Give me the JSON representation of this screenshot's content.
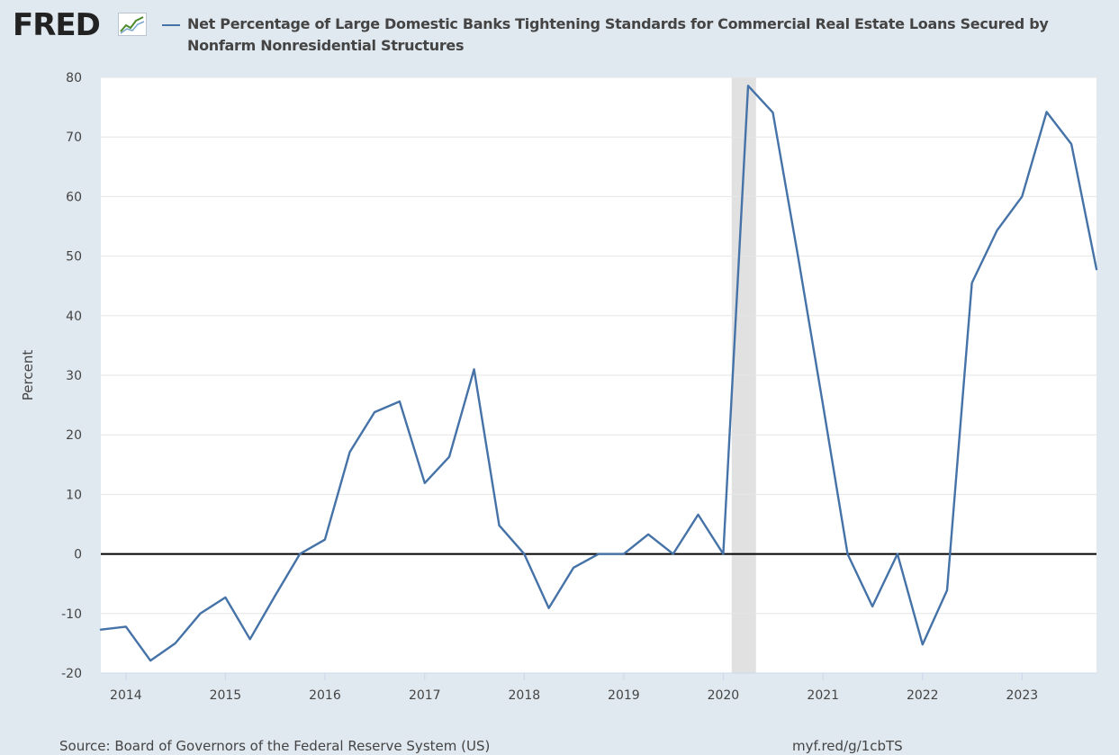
{
  "header": {
    "logo_text": "FRED",
    "title": "Net Percentage of Large Domestic Banks Tightening Standards for Commercial Real Estate Loans Secured by Nonfarm Nonresidential Structures"
  },
  "footer": {
    "source": "Source: Board of Governors of the Federal Reserve System (US)",
    "link": "myf.red/g/1cbTS"
  },
  "colors": {
    "series": "#4572a7",
    "background": "#e1e9f0",
    "plot_background": "#ffffff",
    "recession": "#e1e1e1",
    "zero_line": "#000000"
  },
  "chart_data": {
    "type": "line",
    "ylabel": "Percent",
    "xlabel": "",
    "ylim": [
      -20,
      80
    ],
    "yticks": [
      -20,
      -10,
      0,
      10,
      20,
      30,
      40,
      50,
      60,
      70,
      80
    ],
    "xlim": [
      "2013-10-01",
      "2023-10-01"
    ],
    "xticks": [
      "2014",
      "2015",
      "2016",
      "2017",
      "2018",
      "2019",
      "2020",
      "2021",
      "2022",
      "2023"
    ],
    "grid": true,
    "recession": {
      "start": "2020-02-01",
      "end": "2020-04-30"
    },
    "series": [
      {
        "name": "Net Percentage of Large Domestic Banks Tightening Standards for Commercial Real Estate Loans Secured by Nonfarm Nonresidential Structures",
        "x": [
          "2013-10-01",
          "2014-01-01",
          "2014-04-01",
          "2014-07-01",
          "2014-10-01",
          "2015-01-01",
          "2015-04-01",
          "2015-07-01",
          "2015-10-01",
          "2016-01-01",
          "2016-04-01",
          "2016-07-01",
          "2016-10-01",
          "2017-01-01",
          "2017-04-01",
          "2017-07-01",
          "2017-10-01",
          "2018-01-01",
          "2018-04-01",
          "2018-07-01",
          "2018-10-01",
          "2019-01-01",
          "2019-04-01",
          "2019-07-01",
          "2019-10-01",
          "2020-01-01",
          "2020-04-01",
          "2020-07-01",
          "2020-10-01",
          "2021-01-01",
          "2021-04-01",
          "2021-07-01",
          "2021-10-01",
          "2022-01-01",
          "2022-04-01",
          "2022-07-01",
          "2022-10-01",
          "2023-01-01",
          "2023-04-01",
          "2023-07-01",
          "2023-10-01"
        ],
        "values": [
          -12.7,
          -12.2,
          -17.9,
          -15.0,
          -10.0,
          -7.3,
          -14.3,
          -7.1,
          0.0,
          2.4,
          17.1,
          23.8,
          25.6,
          11.9,
          16.3,
          31.0,
          4.8,
          0.0,
          -9.1,
          -2.3,
          0.0,
          0.0,
          3.3,
          0.0,
          6.6,
          0.0,
          78.6,
          74.1,
          50.0,
          25.0,
          0.0,
          -8.8,
          0.0,
          -15.2,
          -6.1,
          45.5,
          54.3,
          60.0,
          74.2,
          68.8,
          47.8
        ]
      }
    ]
  }
}
